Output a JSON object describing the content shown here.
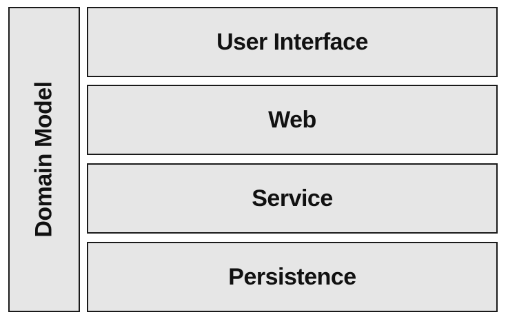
{
  "diagram": {
    "side_panel": {
      "label": "Domain Model"
    },
    "layers": [
      {
        "label": "User Interface"
      },
      {
        "label": "Web"
      },
      {
        "label": "Service"
      },
      {
        "label": "Persistence"
      }
    ],
    "colors": {
      "box_fill": "#e6e6e6",
      "box_border": "#1a1a1a",
      "text": "#111111",
      "background": "#ffffff"
    }
  }
}
